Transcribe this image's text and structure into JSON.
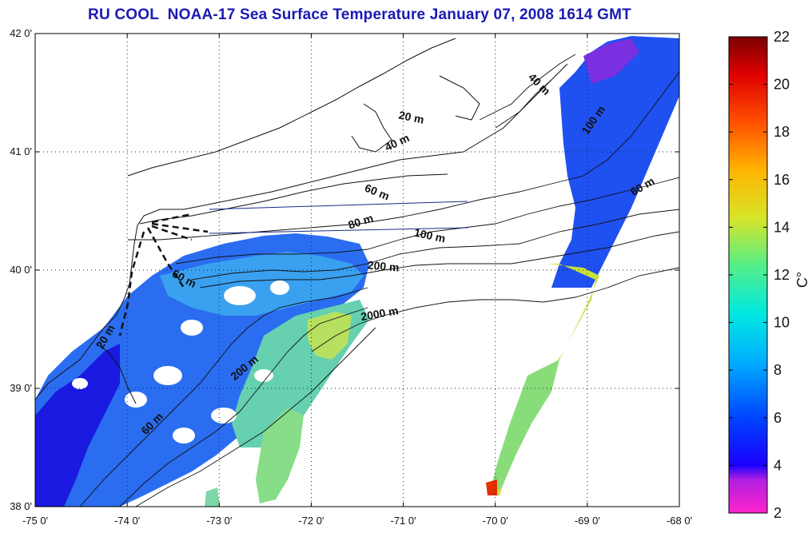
{
  "title": "RU COOL  NOAA-17 Sea Surface Temperature January 07, 2008 1614 GMT",
  "map": {
    "lon_range": [
      -75,
      -68
    ],
    "lat_range": [
      38,
      42
    ],
    "lon_ticks": [
      {
        "value": -75,
        "label": "-75 0'"
      },
      {
        "value": -74,
        "label": "-74 0'"
      },
      {
        "value": -73,
        "label": "-73 0'"
      },
      {
        "value": -72,
        "label": "-72 0'"
      },
      {
        "value": -71,
        "label": "-71 0'"
      },
      {
        "value": -70,
        "label": "-70 0'"
      },
      {
        "value": -69,
        "label": "-69 0'"
      },
      {
        "value": -68,
        "label": "-68 0'"
      }
    ],
    "lat_ticks": [
      {
        "value": 38,
        "label": "38 0'"
      },
      {
        "value": 39,
        "label": "39 0'"
      },
      {
        "value": 40,
        "label": "40 0'"
      },
      {
        "value": 41,
        "label": "41 0'"
      },
      {
        "value": 42,
        "label": "42 0'"
      }
    ],
    "grid": "dotted",
    "contour_labels": [
      {
        "text": "20 m",
        "lon": -70.92,
        "lat": 41.26,
        "rot": 12
      },
      {
        "text": "40 m",
        "lon": -69.55,
        "lat": 41.55,
        "rot": 45
      },
      {
        "text": "40 m",
        "lon": -71.05,
        "lat": 41.05,
        "rot": -25
      },
      {
        "text": "100 m",
        "lon": -68.9,
        "lat": 41.25,
        "rot": -55
      },
      {
        "text": "60 m",
        "lon": -71.3,
        "lat": 40.63,
        "rot": 22
      },
      {
        "text": "60 m",
        "lon": -68.38,
        "lat": 40.68,
        "rot": -30
      },
      {
        "text": "80 m",
        "lon": -71.45,
        "lat": 40.38,
        "rot": -18
      },
      {
        "text": "100 m",
        "lon": -70.72,
        "lat": 40.26,
        "rot": 12
      },
      {
        "text": "200 m",
        "lon": -71.22,
        "lat": 40.0,
        "rot": 5
      },
      {
        "text": "2000 m",
        "lon": -71.25,
        "lat": 39.6,
        "rot": -10
      },
      {
        "text": "60 m",
        "lon": -73.4,
        "lat": 39.9,
        "rot": 28
      },
      {
        "text": "200 m",
        "lon": -72.7,
        "lat": 39.15,
        "rot": -40
      },
      {
        "text": "20 m",
        "lon": -74.2,
        "lat": 39.42,
        "rot": -60
      },
      {
        "text": "60 m",
        "lon": -73.7,
        "lat": 38.68,
        "rot": -45
      }
    ]
  },
  "colorbar": {
    "range": [
      2,
      22
    ],
    "unit": "C°",
    "ticks": [
      "2",
      "4",
      "6",
      "8",
      "10",
      "12",
      "14",
      "16",
      "18",
      "20",
      "22"
    ],
    "colors": [
      "#ff22cc",
      "#9922e0",
      "#0000ff",
      "#0055ff",
      "#00a0ff",
      "#00e0e0",
      "#66ee88",
      "#dddd22",
      "#ffb000",
      "#ff4400",
      "#dd0000",
      "#7a0000"
    ]
  }
}
